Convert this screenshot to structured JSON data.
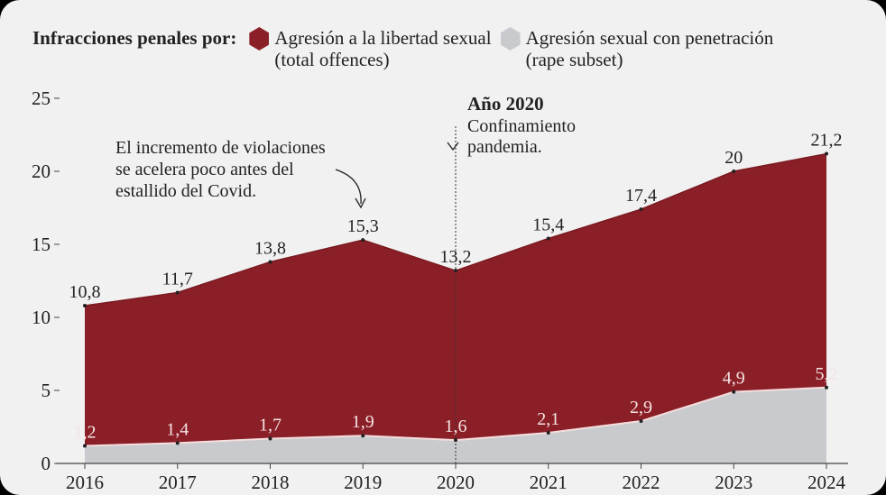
{
  "legend": {
    "title": "Infracciones penales por:",
    "items": [
      {
        "label_line1": "Agresión a la libertad sexual",
        "label_line2": "(total offences)",
        "color": "#8b1f27"
      },
      {
        "label_line1": "Agresión sexual con penetración",
        "label_line2": "(rape subset)",
        "color": "#c9cacd"
      }
    ]
  },
  "chart_data": {
    "type": "area",
    "x": [
      "2016",
      "2017",
      "2018",
      "2019",
      "2020",
      "2021",
      "2022",
      "2023",
      "2024"
    ],
    "series": [
      {
        "name": "Agresión a la libertad sexual (total offences)",
        "values": [
          10.8,
          11.7,
          13.8,
          15.3,
          13.2,
          15.4,
          17.4,
          20,
          21.2
        ],
        "labels": [
          "10,8",
          "11,7",
          "13,8",
          "15,3",
          "13,2",
          "15,4",
          "17,4",
          "20",
          "21,2"
        ],
        "color": "#8b1f27"
      },
      {
        "name": "Agresión sexual con penetración (rape subset)",
        "values": [
          1.2,
          1.4,
          1.7,
          1.9,
          1.6,
          2.1,
          2.9,
          4.9,
          5.2
        ],
        "labels": [
          "1,2",
          "1,4",
          "1,7",
          "1,9",
          "1,6",
          "2,1",
          "2,9",
          "4,9",
          "5,2"
        ],
        "color": "#c9cacd"
      }
    ],
    "ylim": [
      0,
      25
    ],
    "yticks": [
      "0",
      "5",
      "10",
      "15",
      "20",
      "25"
    ],
    "grid": false,
    "annotations": {
      "covid": {
        "lines": [
          "El incremento de violaciones",
          "se acelera poco antes del",
          "estallido del Covid."
        ]
      },
      "year2020": {
        "title": "Año 2020",
        "lines": [
          "Confinamiento",
          "pandemia."
        ]
      }
    }
  }
}
